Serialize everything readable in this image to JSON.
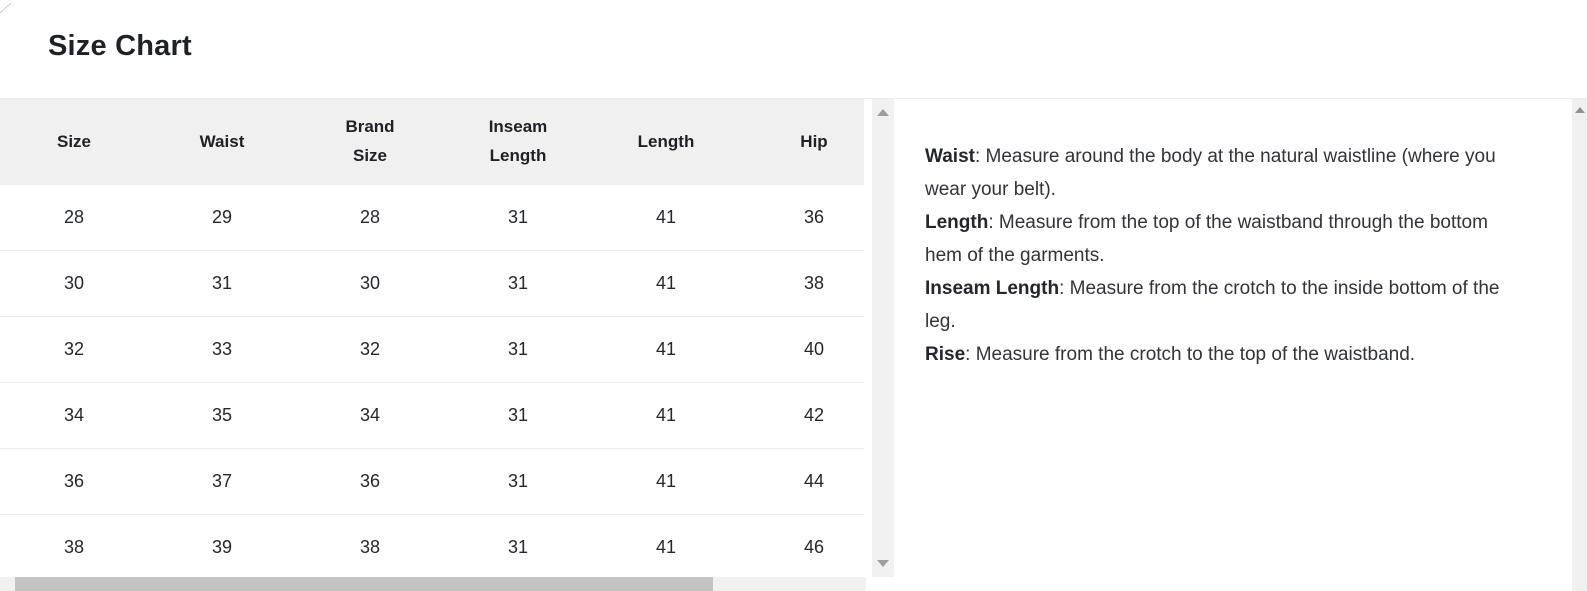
{
  "title": "Size Chart",
  "table": {
    "columns": [
      "Size",
      "Waist",
      "Brand Size",
      "Inseam Length",
      "Length",
      "Hip"
    ],
    "rows": [
      [
        "28",
        "29",
        "28",
        "31",
        "41",
        "36"
      ],
      [
        "30",
        "31",
        "30",
        "31",
        "41",
        "38"
      ],
      [
        "32",
        "33",
        "32",
        "31",
        "41",
        "40"
      ],
      [
        "34",
        "35",
        "34",
        "31",
        "41",
        "42"
      ],
      [
        "36",
        "37",
        "36",
        "31",
        "41",
        "44"
      ],
      [
        "38",
        "39",
        "38",
        "31",
        "41",
        "46"
      ]
    ]
  },
  "measurement_guide": {
    "separator": ": ",
    "items": [
      {
        "label": "Waist",
        "text": "Measure around the body at the natural waistline (where you wear your belt)."
      },
      {
        "label": "Length",
        "text": "Measure from the top of the waistband through the bottom hem of the garments."
      },
      {
        "label": "Inseam Length",
        "text": "Measure from the crotch to the inside bottom of the leg."
      },
      {
        "label": "Rise",
        "text": "Measure from the crotch to the top of the waistband."
      }
    ]
  },
  "icons": {
    "table_scroll_up": "chevron-up",
    "table_scroll_down": "chevron-down",
    "page_scroll_up": "chevron-up"
  },
  "colors": {
    "header_background": "#f0f0f0",
    "row_border": "#ececec",
    "title_text": "#1e2126",
    "body_text": "#303439",
    "cell_text": "#24272b",
    "scrollbar_track": "#f1f1f1",
    "scrollbar_thumb": "#c3c3c3",
    "scrollbar_arrow": "#9e9e9e"
  }
}
